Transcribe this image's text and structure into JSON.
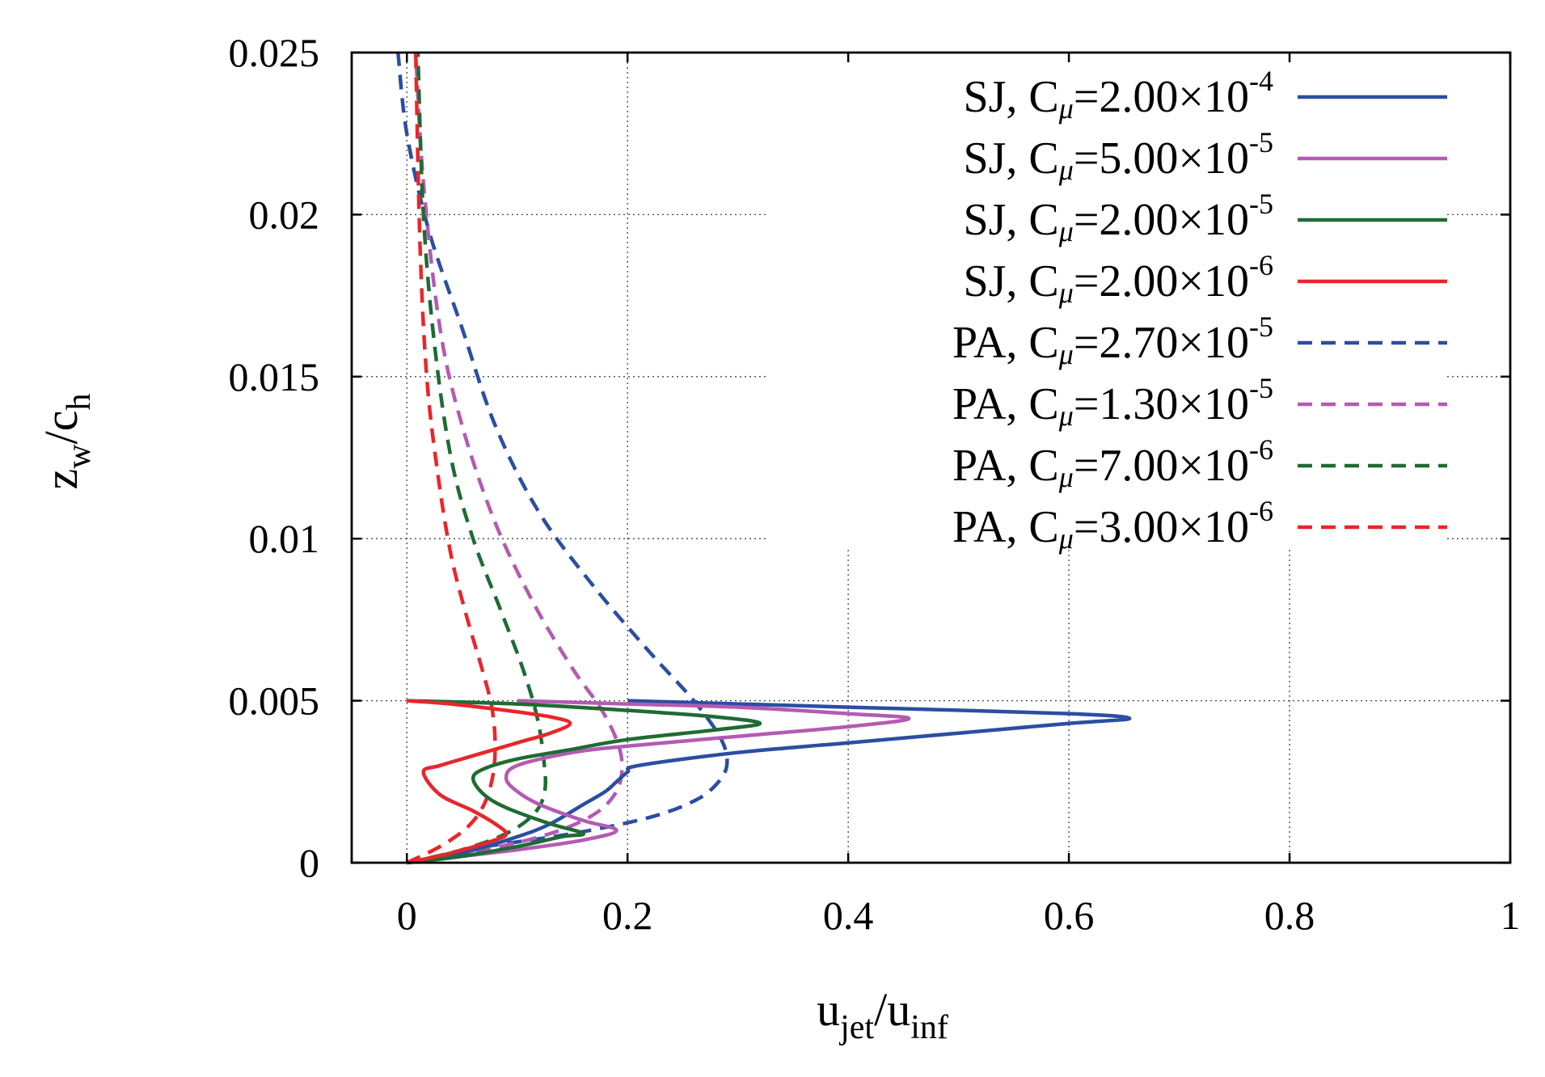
{
  "chart_data": {
    "type": "line",
    "xlabel": {
      "main": "u",
      "sub": "jet",
      "sep": "/",
      "main2": "u",
      "sub2": "inf"
    },
    "ylabel": {
      "main": "z",
      "sub": "w",
      "sep": "/",
      "main2": "c",
      "sub2": "h"
    },
    "xlim": [
      -0.05,
      1.0
    ],
    "ylim": [
      0,
      0.025
    ],
    "xticks": [
      0,
      0.2,
      0.4,
      0.6,
      0.8,
      1
    ],
    "xtick_labels": [
      "0",
      "0.2",
      "0.4",
      "0.6",
      "0.8",
      "1"
    ],
    "yticks": [
      0,
      0.005,
      0.01,
      0.015,
      0.02,
      0.025
    ],
    "ytick_labels": [
      "0",
      "0.005",
      "0.01",
      "0.015",
      "0.02",
      "0.025"
    ],
    "grid": true,
    "legend_position": "top-right",
    "series": [
      {
        "name": "SJ",
        "cmu_mant": "2.00",
        "cmu_exp": "-4",
        "color": "#2b4ea2",
        "dash": "solid",
        "x": [
          0.0,
          0.05,
          0.1,
          0.13,
          0.16,
          0.18,
          0.19,
          0.2,
          0.21,
          0.3,
          0.4,
          0.5,
          0.6,
          0.655,
          0.6,
          0.4,
          0.3,
          0.2
        ],
        "y": [
          0.0,
          0.0003,
          0.0008,
          0.0012,
          0.0018,
          0.0022,
          0.0025,
          0.0028,
          0.003,
          0.0034,
          0.0037,
          0.004,
          0.0043,
          0.00445,
          0.0046,
          0.0048,
          0.0049,
          0.005
        ]
      },
      {
        "name": "SJ",
        "cmu_mant": "5.00",
        "cmu_exp": "-5",
        "color": "#b35bb3",
        "dash": "solid",
        "x": [
          0.0,
          0.05,
          0.1,
          0.16,
          0.19,
          0.16,
          0.12,
          0.1,
          0.09,
          0.1,
          0.15,
          0.2,
          0.3,
          0.4,
          0.455,
          0.4,
          0.3,
          0.2,
          0.1
        ],
        "y": [
          0.0,
          0.0002,
          0.0004,
          0.0007,
          0.001,
          0.0013,
          0.0018,
          0.0022,
          0.0026,
          0.003,
          0.0034,
          0.0036,
          0.0039,
          0.0042,
          0.00445,
          0.0046,
          0.0048,
          0.0049,
          0.005
        ]
      },
      {
        "name": "SJ",
        "cmu_mant": "2.00",
        "cmu_exp": "-5",
        "color": "#1e6b34",
        "dash": "solid",
        "x": [
          0.0,
          0.05,
          0.1,
          0.14,
          0.16,
          0.13,
          0.09,
          0.07,
          0.06,
          0.07,
          0.1,
          0.15,
          0.2,
          0.28,
          0.32,
          0.28,
          0.2,
          0.1,
          0.0
        ],
        "y": [
          0.0,
          0.0002,
          0.0005,
          0.0008,
          0.0009,
          0.0012,
          0.0017,
          0.0021,
          0.0026,
          0.0029,
          0.0032,
          0.0035,
          0.0038,
          0.0041,
          0.0043,
          0.0045,
          0.0047,
          0.0049,
          0.005
        ]
      },
      {
        "name": "SJ",
        "cmu_mant": "2.00",
        "cmu_exp": "-6",
        "color": "#e8262b",
        "dash": "solid",
        "x": [
          0.0,
          0.04,
          0.08,
          0.09,
          0.08,
          0.06,
          0.03,
          0.015,
          0.03,
          0.06,
          0.1,
          0.13,
          0.148,
          0.13,
          0.09,
          0.04,
          0.0
        ],
        "y": [
          0.0,
          0.0003,
          0.0007,
          0.0009,
          0.0012,
          0.0016,
          0.0021,
          0.0028,
          0.003,
          0.0033,
          0.0037,
          0.004,
          0.0043,
          0.0045,
          0.0047,
          0.0049,
          0.005
        ]
      },
      {
        "name": "PA",
        "cmu_mant": "2.70",
        "cmu_exp": "-5",
        "color": "#2b4ea2",
        "dash": "dashed",
        "x": [
          0.07,
          0.15,
          0.22,
          0.26,
          0.28,
          0.29,
          0.285,
          0.26,
          0.22,
          0.17,
          0.12,
          0.08,
          0.05,
          0.02,
          0.0,
          -0.008
        ],
        "y": [
          0.0005,
          0.0009,
          0.0014,
          0.0019,
          0.0024,
          0.003,
          0.0038,
          0.005,
          0.0065,
          0.0085,
          0.0108,
          0.0135,
          0.0165,
          0.0195,
          0.0225,
          0.025
        ]
      },
      {
        "name": "PA",
        "cmu_mant": "1.30",
        "cmu_exp": "-5",
        "color": "#b35bb3",
        "dash": "dashed",
        "x": [
          0.0,
          0.07,
          0.13,
          0.17,
          0.19,
          0.195,
          0.19,
          0.175,
          0.15,
          0.115,
          0.08,
          0.05,
          0.03,
          0.015,
          0.008
        ],
        "y": [
          0.0,
          0.0004,
          0.0009,
          0.0015,
          0.0022,
          0.003,
          0.0038,
          0.0048,
          0.006,
          0.008,
          0.0105,
          0.0135,
          0.0165,
          0.021,
          0.025
        ]
      },
      {
        "name": "PA",
        "cmu_mant": "7.00",
        "cmu_exp": "-6",
        "color": "#1e6b34",
        "dash": "dashed",
        "x": [
          0.0,
          0.05,
          0.09,
          0.115,
          0.125,
          0.124,
          0.118,
          0.105,
          0.085,
          0.06,
          0.04,
          0.025,
          0.015,
          0.01
        ],
        "y": [
          0.0,
          0.0004,
          0.0009,
          0.0015,
          0.0022,
          0.0032,
          0.0045,
          0.006,
          0.0078,
          0.01,
          0.0125,
          0.016,
          0.02,
          0.025
        ]
      },
      {
        "name": "PA",
        "cmu_mant": "3.00",
        "cmu_exp": "-6",
        "color": "#e8262b",
        "dash": "dashed",
        "x": [
          0.0,
          0.03,
          0.055,
          0.07,
          0.078,
          0.08,
          0.077,
          0.068,
          0.055,
          0.04,
          0.028,
          0.018,
          0.012,
          0.008
        ],
        "y": [
          0.0,
          0.0005,
          0.0011,
          0.0018,
          0.0027,
          0.0037,
          0.0048,
          0.006,
          0.0075,
          0.0095,
          0.012,
          0.015,
          0.019,
          0.025
        ]
      }
    ]
  }
}
